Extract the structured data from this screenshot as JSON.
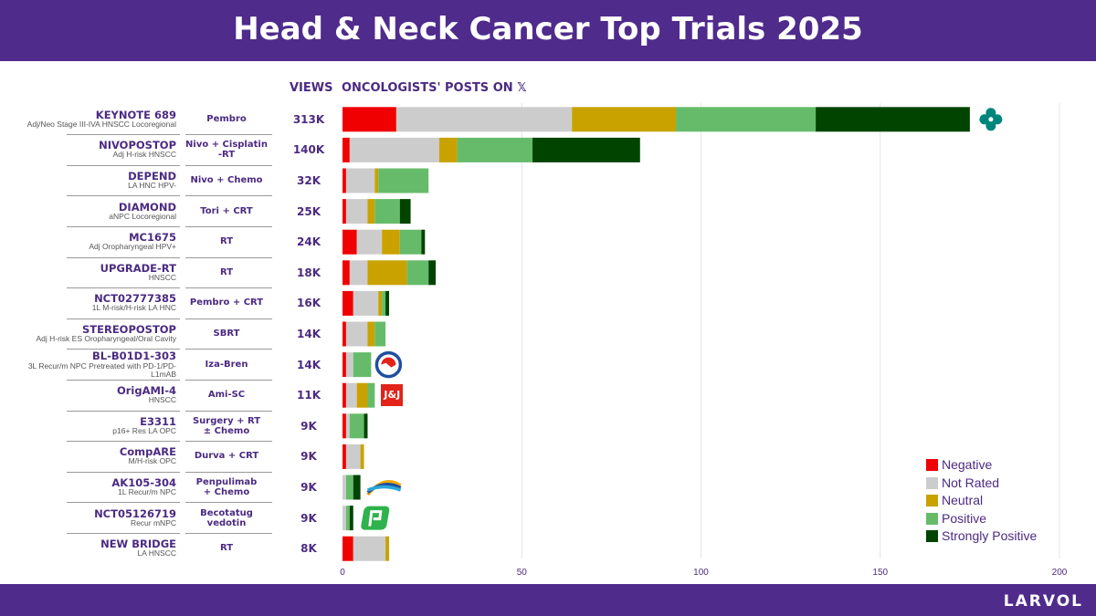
{
  "title": "Head & Neck Cancer Top Trials 2025",
  "brand": "LARVOL",
  "headers": {
    "views": "VIEWS",
    "posts_prefix": "ONCOLOGISTS' POSTS ON",
    "x_glyph": "𝕏"
  },
  "colors": {
    "negative": "#f00000",
    "not_rated": "#cccccc",
    "neutral": "#c9a200",
    "positive": "#66bb6a",
    "strongly_positive": "#004400",
    "purple": "#4f2b8c"
  },
  "logos": {
    "jnj": "J&J"
  },
  "chart_data": {
    "type": "bar",
    "orientation": "horizontal",
    "stacked": true,
    "title": "ONCOLOGISTS' POSTS ON 𝕏",
    "xlim": [
      0,
      200
    ],
    "xticks": [
      0,
      50,
      100,
      150,
      200
    ],
    "grid": true,
    "legend_position": "bottom-right",
    "series_names": [
      "Negative",
      "Not Rated",
      "Neutral",
      "Positive",
      "Strongly Positive"
    ],
    "rows": [
      {
        "trial": "KEYNOTE 689",
        "subtitle": "Adj/Neo Stage III-IVA HNSCC Locoregional",
        "treatment": [
          "Pembro"
        ],
        "views": "313K",
        "values": [
          15,
          49,
          29,
          39,
          43
        ],
        "logo": "merck"
      },
      {
        "trial": "NIVOPOSTOP",
        "subtitle": "Adj H-risk HNSCC",
        "treatment": [
          "Nivo + Cisplatin",
          "-RT"
        ],
        "views": "140K",
        "values": [
          2,
          25,
          5,
          21,
          30
        ],
        "logo": ""
      },
      {
        "trial": "DEPEND",
        "subtitle": "LA HNC HPV-",
        "treatment": [
          "Nivo + Chemo"
        ],
        "views": "32K",
        "values": [
          1,
          8,
          1,
          14,
          0
        ],
        "logo": ""
      },
      {
        "trial": "DIAMOND",
        "subtitle": "aNPC Locoregional",
        "treatment": [
          "Tori + CRT"
        ],
        "views": "25K",
        "values": [
          1,
          6,
          2,
          7,
          3
        ],
        "logo": ""
      },
      {
        "trial": "MC1675",
        "subtitle": "Adj Oropharyngeal HPV+",
        "treatment": [
          "RT"
        ],
        "views": "24K",
        "values": [
          4,
          7,
          5,
          6,
          1
        ],
        "logo": ""
      },
      {
        "trial": "UPGRADE-RT",
        "subtitle": "HNSCC",
        "treatment": [
          "RT"
        ],
        "views": "18K",
        "values": [
          2,
          5,
          11,
          6,
          2
        ],
        "logo": ""
      },
      {
        "trial": "NCT02777385",
        "subtitle": "1L M-risk/H-risk LA HNC",
        "treatment": [
          "Pembro + CRT"
        ],
        "views": "16K",
        "values": [
          3,
          7,
          1,
          1,
          1
        ],
        "logo": ""
      },
      {
        "trial": "STEREOPOSTOP",
        "subtitle": "Adj H-risk ES Oropharyngeal/Oral Cavity",
        "treatment": [
          "SBRT"
        ],
        "views": "14K",
        "values": [
          1,
          6,
          2,
          3,
          0
        ],
        "logo": ""
      },
      {
        "trial": "BL-B01D1-303",
        "subtitle": "3L Recur/m NPC Pretreated with PD-1/PD-L1mAB",
        "treatment": [
          "Iza-Bren"
        ],
        "views": "14K",
        "values": [
          1,
          2,
          0,
          5,
          0
        ],
        "logo": "biokin"
      },
      {
        "trial": "OrigAMI-4",
        "subtitle": "HNSCC",
        "treatment": [
          "Ami-SC"
        ],
        "views": "11K",
        "values": [
          1,
          3,
          3,
          2,
          0
        ],
        "logo": "jnj"
      },
      {
        "trial": "E3311",
        "subtitle": "p16+ Res LA OPC",
        "treatment": [
          "Surgery + RT",
          "± Chemo"
        ],
        "views": "9K",
        "values": [
          1,
          1,
          0,
          4,
          1
        ],
        "logo": ""
      },
      {
        "trial": "CompARE",
        "subtitle": "M/H-risk OPC",
        "treatment": [
          "Durva + CRT"
        ],
        "views": "9K",
        "values": [
          1,
          4,
          1,
          0,
          0
        ],
        "logo": ""
      },
      {
        "trial": "AK105-304",
        "subtitle": "1L Recur/m NPC",
        "treatment": [
          "Penpulimab",
          "+ Chemo"
        ],
        "views": "9K",
        "values": [
          0,
          1,
          0,
          2,
          2
        ],
        "logo": "akeso"
      },
      {
        "trial": "NCT05126719",
        "subtitle": "Recur mNPC",
        "treatment": [
          "Becotatug",
          "vedotin"
        ],
        "views": "9K",
        "values": [
          0,
          1,
          0,
          1,
          1
        ],
        "logo": "biotheus"
      },
      {
        "trial": "NEW BRIDGE",
        "subtitle": "LA HNSCC",
        "treatment": [
          "RT"
        ],
        "views": "8K",
        "values": [
          3,
          9,
          1,
          0,
          0
        ],
        "logo": ""
      }
    ]
  }
}
